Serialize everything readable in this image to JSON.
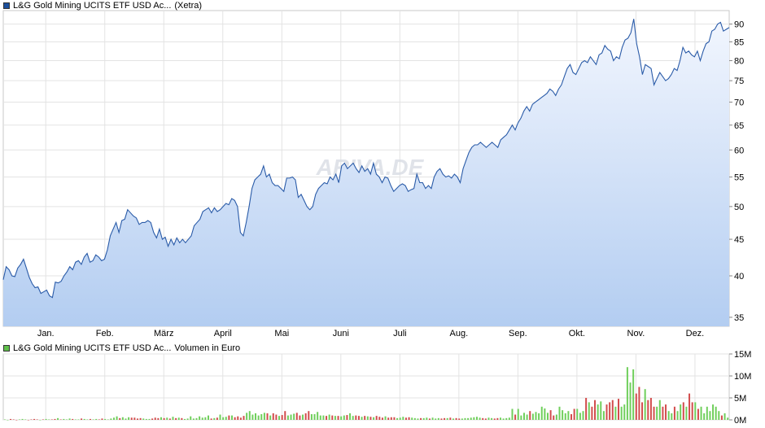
{
  "chart_data": [
    {
      "type": "area",
      "legend": "L&G Gold Mining UCITS ETF USD Ac...",
      "legend_suffix": "(Xetra)",
      "legend_color": "#1c4f9c",
      "watermark": "ARIVA.DE",
      "y_scale": "log",
      "ylim": [
        34,
        94
      ],
      "y_ticks": [
        35,
        40,
        45,
        50,
        55,
        60,
        65,
        70,
        75,
        80,
        85,
        90
      ],
      "x_ticks": [
        "Jan.",
        "Feb.",
        "März",
        "April",
        "Mai",
        "Juni",
        "Juli",
        "Aug.",
        "Sep.",
        "Okt.",
        "Nov.",
        "Dez."
      ],
      "grid": true,
      "line_color": "#2a5ba8",
      "fill_top": "#f2f6fe",
      "fill_bottom": "#b3cdf1",
      "values": [
        39.5,
        41.2,
        40.8,
        40.0,
        39.9,
        41.0,
        41.5,
        42.2,
        41.0,
        39.8,
        39.0,
        38.5,
        38.6,
        37.8,
        38.0,
        38.2,
        37.5,
        37.3,
        39.2,
        39.1,
        39.3,
        40.0,
        40.5,
        41.2,
        40.8,
        41.8,
        42.0,
        41.5,
        42.5,
        43.0,
        41.8,
        42.0,
        42.8,
        42.5,
        42.0,
        42.2,
        43.5,
        45.5,
        46.5,
        47.5,
        46.0,
        47.8,
        48.0,
        49.5,
        49.0,
        48.5,
        48.2,
        47.2,
        47.5,
        47.5,
        47.8,
        47.5,
        46.0,
        45.2,
        46.5,
        45.0,
        45.3,
        44.0,
        45.0,
        44.2,
        45.2,
        44.5,
        45.0,
        44.5,
        45.0,
        45.5,
        47.0,
        47.5,
        48.0,
        49.2,
        49.5,
        49.8,
        49.0,
        49.8,
        49.2,
        49.5,
        50.0,
        50.5,
        50.3,
        51.3,
        51.0,
        50.0,
        46.0,
        45.5,
        47.5,
        50.0,
        53.0,
        54.5,
        55.0,
        55.5,
        57.0,
        55.0,
        55.5,
        54.0,
        53.5,
        53.5,
        53.0,
        52.5,
        54.8,
        54.8,
        55.0,
        54.5,
        51.5,
        52.0,
        51.0,
        50.0,
        49.5,
        50.0,
        52.0,
        53.0,
        53.5,
        54.0,
        53.8,
        55.0,
        54.5,
        55.5,
        54.0,
        57.0,
        57.5,
        56.5,
        57.0,
        57.5,
        56.5,
        55.8,
        57.0,
        56.0,
        56.5,
        55.5,
        57.5,
        55.5,
        55.0,
        54.0,
        55.0,
        54.8,
        53.5,
        52.5,
        53.0,
        53.5,
        53.8,
        53.5,
        52.5,
        52.8,
        53.0,
        55.5,
        54.0,
        54.0,
        53.0,
        53.5,
        53.0,
        55.0,
        56.0,
        56.5,
        55.5,
        55.0,
        55.2,
        54.8,
        55.5,
        55.0,
        54.0,
        56.5,
        58.0,
        59.5,
        60.5,
        61.0,
        61.0,
        61.5,
        61.0,
        60.5,
        61.0,
        61.5,
        61.0,
        60.5,
        62.0,
        62.5,
        63.0,
        64.0,
        65.0,
        64.0,
        65.5,
        66.5,
        68.0,
        69.0,
        68.0,
        69.5,
        70.0,
        70.5,
        71.0,
        71.5,
        72.0,
        73.0,
        72.5,
        71.5,
        73.0,
        74.0,
        76.0,
        78.0,
        79.0,
        77.0,
        76.5,
        78.0,
        79.5,
        80.0,
        79.5,
        81.0,
        80.0,
        79.0,
        81.5,
        82.0,
        84.0,
        83.0,
        82.5,
        80.0,
        81.0,
        80.5,
        83.5,
        85.5,
        86.0,
        87.5,
        91.5,
        84.5,
        81.0,
        76.5,
        79.0,
        78.5,
        78.0,
        74.0,
        75.5,
        77.0,
        76.0,
        75.0,
        75.5,
        76.5,
        78.0,
        77.5,
        80.0,
        83.5,
        82.0,
        82.5,
        81.5,
        81.0,
        82.5,
        80.0,
        82.5,
        84.5,
        85.0,
        88.0,
        88.5,
        90.0,
        90.5,
        88.0,
        88.5,
        89.0
      ]
    },
    {
      "type": "bar",
      "legend": "L&G Gold Mining UCITS ETF USD Ac...",
      "legend_suffix": "Volumen in Euro",
      "legend_color": "#5fbf4a",
      "ylim": [
        0,
        15
      ],
      "y_ticks": [
        0,
        5,
        10,
        15
      ],
      "y_tick_labels": [
        "0M",
        "5M",
        "10M",
        "15M"
      ],
      "grid": true,
      "up_color": "#6fcf5b",
      "down_color": "#d24c4c",
      "values": [
        0.1,
        0.0,
        0.2,
        0.1,
        0.0,
        0.1,
        0.2,
        0.1,
        0.0,
        0.1,
        0.2,
        0.1,
        0.0,
        0.1,
        0.2,
        0.1,
        0.1,
        0.2,
        0.4,
        0.1,
        0.2,
        0.1,
        0.3,
        0.2,
        0.1,
        0.1,
        0.3,
        0.2,
        0.1,
        0.2,
        0.1,
        0.2,
        0.1,
        0.3,
        0.2,
        0.1,
        0.3,
        0.5,
        0.8,
        0.4,
        0.6,
        0.3,
        0.6,
        0.5,
        0.5,
        0.3,
        0.4,
        0.3,
        0.2,
        0.2,
        0.3,
        0.5,
        0.4,
        0.6,
        0.4,
        0.5,
        0.3,
        0.7,
        0.4,
        0.5,
        0.4,
        0.2,
        0.3,
        0.8,
        0.3,
        0.4,
        0.8,
        0.5,
        0.6,
        1.0,
        0.3,
        0.4,
        0.5,
        1.2,
        0.6,
        0.7,
        1.0,
        1.0,
        0.6,
        0.8,
        0.5,
        0.9,
        1.6,
        2.0,
        1.2,
        1.5,
        1.0,
        1.3,
        1.6,
        1.5,
        1.0,
        1.5,
        1.2,
        0.9,
        1.1,
        2.0,
        1.0,
        1.2,
        1.4,
        1.6,
        1.0,
        1.2,
        1.5,
        2.0,
        1.3,
        1.3,
        1.8,
        1.0,
        1.0,
        0.9,
        1.2,
        1.0,
        0.9,
        0.9,
        0.8,
        1.0,
        1.1,
        1.5,
        0.9,
        1.0,
        0.9,
        0.7,
        0.9,
        0.8,
        0.7,
        0.6,
        0.9,
        0.7,
        0.5,
        0.8,
        0.5,
        0.6,
        0.6,
        0.4,
        0.5,
        0.7,
        0.5,
        0.6,
        0.5,
        0.4,
        0.3,
        0.4,
        0.4,
        0.5,
        0.3,
        0.5,
        0.3,
        0.4,
        0.3,
        0.4,
        0.4,
        0.5,
        0.3,
        0.4,
        0.3,
        0.3,
        0.4,
        0.4,
        0.5,
        0.6,
        0.7,
        0.5,
        0.4,
        0.3,
        0.5,
        0.4,
        0.3,
        0.4,
        0.5,
        0.3,
        0.4,
        0.5,
        2.5,
        1.2,
        2.5,
        1.0,
        1.6,
        1.2,
        2.0,
        1.4,
        1.8,
        1.5,
        3.0,
        2.6,
        1.6,
        2.2,
        1.0,
        1.2,
        3.0,
        2.2,
        1.5,
        2.0,
        1.3,
        2.5,
        2.5,
        1.6,
        2.0,
        5.0,
        4.0,
        3.0,
        4.5,
        3.5,
        4.2,
        2.0,
        3.5,
        4.0,
        4.5,
        3.0,
        4.8,
        3.0,
        3.5,
        12.0,
        8.5,
        11.5,
        6.0,
        7.5,
        4.0,
        7.0,
        4.5,
        5.0,
        3.0,
        3.0,
        4.5,
        3.0,
        3.5,
        2.0,
        1.5,
        3.0,
        2.0,
        3.5,
        4.0,
        3.0,
        6.0,
        4.0,
        4.0,
        2.5,
        3.0,
        1.5,
        3.0,
        2.0,
        3.5,
        3.0,
        2.0,
        1.0,
        1.5,
        0.5
      ]
    }
  ]
}
